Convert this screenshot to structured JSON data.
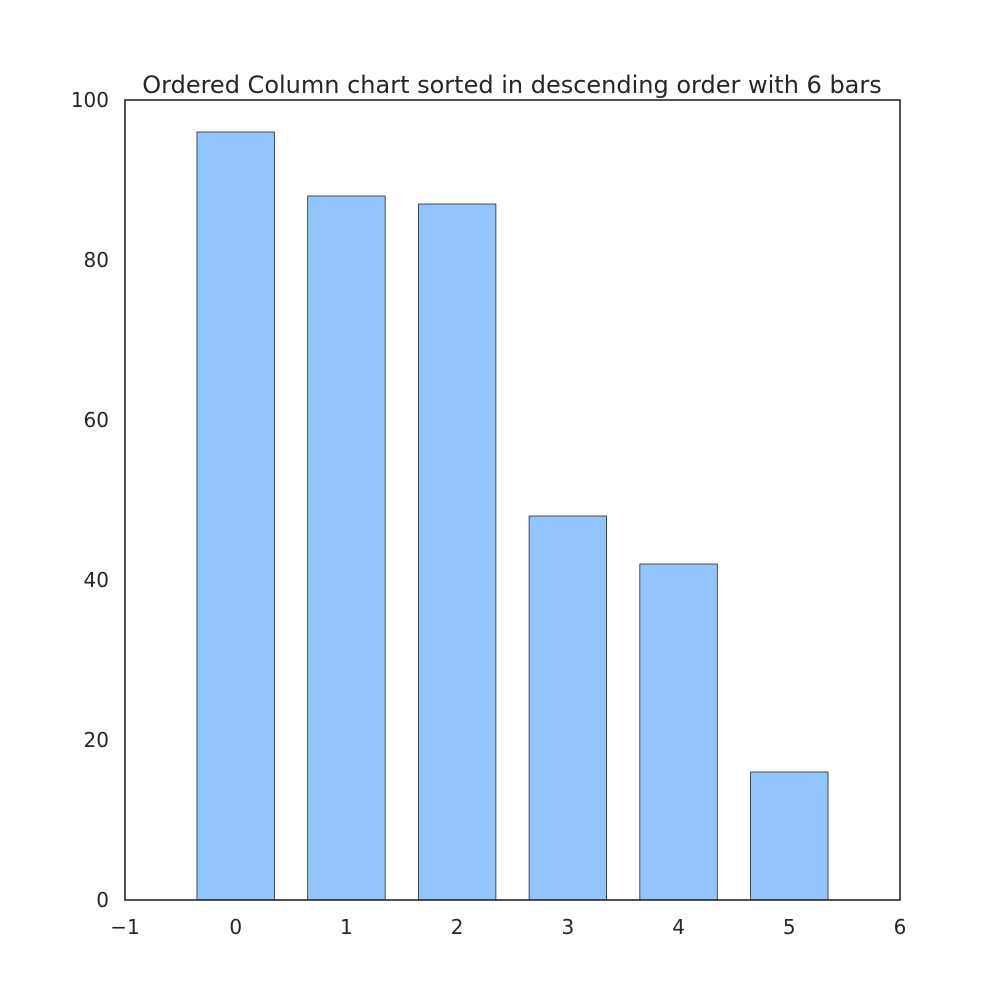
{
  "chart_data": {
    "type": "bar",
    "title": "Ordered Column chart sorted in descending order with 6 bars",
    "xlabel": "",
    "ylabel": "",
    "categories": [
      0,
      1,
      2,
      3,
      4,
      5
    ],
    "values": [
      96,
      88,
      87,
      48,
      42,
      16
    ],
    "xlim": [
      -1,
      6
    ],
    "ylim": [
      0,
      100
    ],
    "xticks": [
      "−1",
      "0",
      "1",
      "2",
      "3",
      "4",
      "5",
      "6"
    ],
    "yticks": [
      "0",
      "20",
      "40",
      "60",
      "80",
      "100"
    ],
    "grid": false,
    "legend": "none",
    "bar_color": "#93c5fd",
    "edge_color": "#262626"
  }
}
